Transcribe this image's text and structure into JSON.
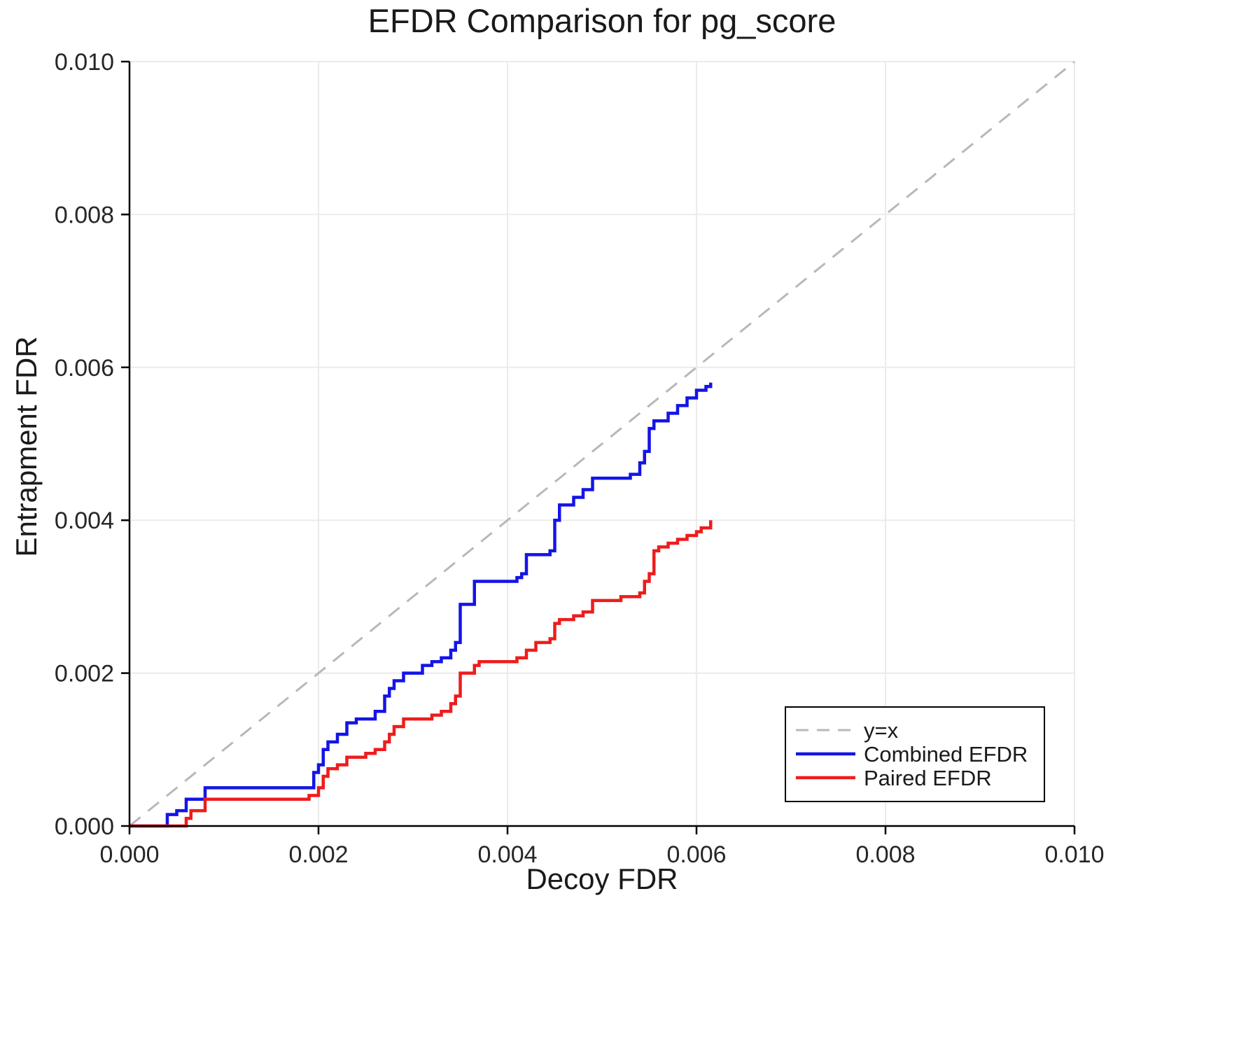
{
  "chart_data": {
    "type": "line",
    "title": "EFDR Comparison for pg_score",
    "xlabel": "Decoy FDR",
    "ylabel": "Entrapment FDR",
    "xlim": [
      0.0,
      0.01
    ],
    "ylim": [
      0.0,
      0.01
    ],
    "xticks": [
      0.0,
      0.002,
      0.004,
      0.006,
      0.008,
      0.01
    ],
    "yticks": [
      0.0,
      0.002,
      0.004,
      0.006,
      0.008,
      0.01
    ],
    "xtick_labels": [
      "0.000",
      "0.002",
      "0.004",
      "0.006",
      "0.008",
      "0.010"
    ],
    "ytick_labels": [
      "0.000",
      "0.002",
      "0.004",
      "0.006",
      "0.008",
      "0.010"
    ],
    "grid": true,
    "grid_color": "#ebebeb",
    "spine_color": "#000000",
    "legend_position": "lower right",
    "series": [
      {
        "name": "y=x",
        "style": "dashed",
        "color": "#b8b8b8",
        "width": 3,
        "points": [
          [
            0.0,
            0.0
          ],
          [
            0.01,
            0.01
          ]
        ]
      },
      {
        "name": "Combined EFDR",
        "style": "step",
        "color": "#1414e6",
        "width": 4.5,
        "points": [
          [
            0.0,
            0.0
          ],
          [
            0.0004,
            0.00015
          ],
          [
            0.0005,
            0.0002
          ],
          [
            0.0006,
            0.00035
          ],
          [
            0.0008,
            0.0005
          ],
          [
            0.00195,
            0.0007
          ],
          [
            0.002,
            0.0008
          ],
          [
            0.00205,
            0.001
          ],
          [
            0.0021,
            0.0011
          ],
          [
            0.0022,
            0.0012
          ],
          [
            0.0023,
            0.00135
          ],
          [
            0.0024,
            0.0014
          ],
          [
            0.0026,
            0.0015
          ],
          [
            0.0027,
            0.0017
          ],
          [
            0.00275,
            0.0018
          ],
          [
            0.0028,
            0.0019
          ],
          [
            0.0029,
            0.002
          ],
          [
            0.0031,
            0.0021
          ],
          [
            0.0032,
            0.00215
          ],
          [
            0.0033,
            0.0022
          ],
          [
            0.0034,
            0.0023
          ],
          [
            0.00345,
            0.0024
          ],
          [
            0.0035,
            0.0029
          ],
          [
            0.00365,
            0.0032
          ],
          [
            0.0041,
            0.00325
          ],
          [
            0.00415,
            0.0033
          ],
          [
            0.0042,
            0.00355
          ],
          [
            0.00445,
            0.0036
          ],
          [
            0.0045,
            0.004
          ],
          [
            0.00455,
            0.0042
          ],
          [
            0.0047,
            0.0043
          ],
          [
            0.0048,
            0.0044
          ],
          [
            0.0049,
            0.00455
          ],
          [
            0.0053,
            0.0046
          ],
          [
            0.0054,
            0.00475
          ],
          [
            0.00545,
            0.0049
          ],
          [
            0.0055,
            0.0052
          ],
          [
            0.00555,
            0.0053
          ],
          [
            0.0057,
            0.0054
          ],
          [
            0.0058,
            0.0055
          ],
          [
            0.0059,
            0.0056
          ],
          [
            0.006,
            0.0057
          ],
          [
            0.0061,
            0.00575
          ],
          [
            0.00615,
            0.0058
          ]
        ]
      },
      {
        "name": "Paired EFDR",
        "style": "step",
        "color": "#ee1c1c",
        "width": 4.5,
        "points": [
          [
            0.0,
            0.0
          ],
          [
            0.0006,
            0.0001
          ],
          [
            0.00065,
            0.0002
          ],
          [
            0.0008,
            0.00035
          ],
          [
            0.0019,
            0.0004
          ],
          [
            0.002,
            0.0005
          ],
          [
            0.00205,
            0.00065
          ],
          [
            0.0021,
            0.00075
          ],
          [
            0.0022,
            0.0008
          ],
          [
            0.0023,
            0.0009
          ],
          [
            0.0025,
            0.00095
          ],
          [
            0.0026,
            0.001
          ],
          [
            0.0027,
            0.0011
          ],
          [
            0.00275,
            0.0012
          ],
          [
            0.0028,
            0.0013
          ],
          [
            0.0029,
            0.0014
          ],
          [
            0.0032,
            0.00145
          ],
          [
            0.0033,
            0.0015
          ],
          [
            0.0034,
            0.0016
          ],
          [
            0.00345,
            0.0017
          ],
          [
            0.0035,
            0.002
          ],
          [
            0.00365,
            0.0021
          ],
          [
            0.0037,
            0.00215
          ],
          [
            0.0041,
            0.0022
          ],
          [
            0.0042,
            0.0023
          ],
          [
            0.0043,
            0.0024
          ],
          [
            0.00445,
            0.00245
          ],
          [
            0.0045,
            0.00265
          ],
          [
            0.00455,
            0.0027
          ],
          [
            0.0047,
            0.00275
          ],
          [
            0.0048,
            0.0028
          ],
          [
            0.0049,
            0.00295
          ],
          [
            0.0052,
            0.003
          ],
          [
            0.0054,
            0.00305
          ],
          [
            0.00545,
            0.0032
          ],
          [
            0.0055,
            0.0033
          ],
          [
            0.00555,
            0.0036
          ],
          [
            0.0056,
            0.00365
          ],
          [
            0.0057,
            0.0037
          ],
          [
            0.0058,
            0.00375
          ],
          [
            0.0059,
            0.0038
          ],
          [
            0.006,
            0.00385
          ],
          [
            0.00605,
            0.0039
          ],
          [
            0.00615,
            0.004
          ]
        ]
      }
    ],
    "legend_labels": [
      "y=x",
      "Combined EFDR",
      "Paired EFDR"
    ]
  }
}
